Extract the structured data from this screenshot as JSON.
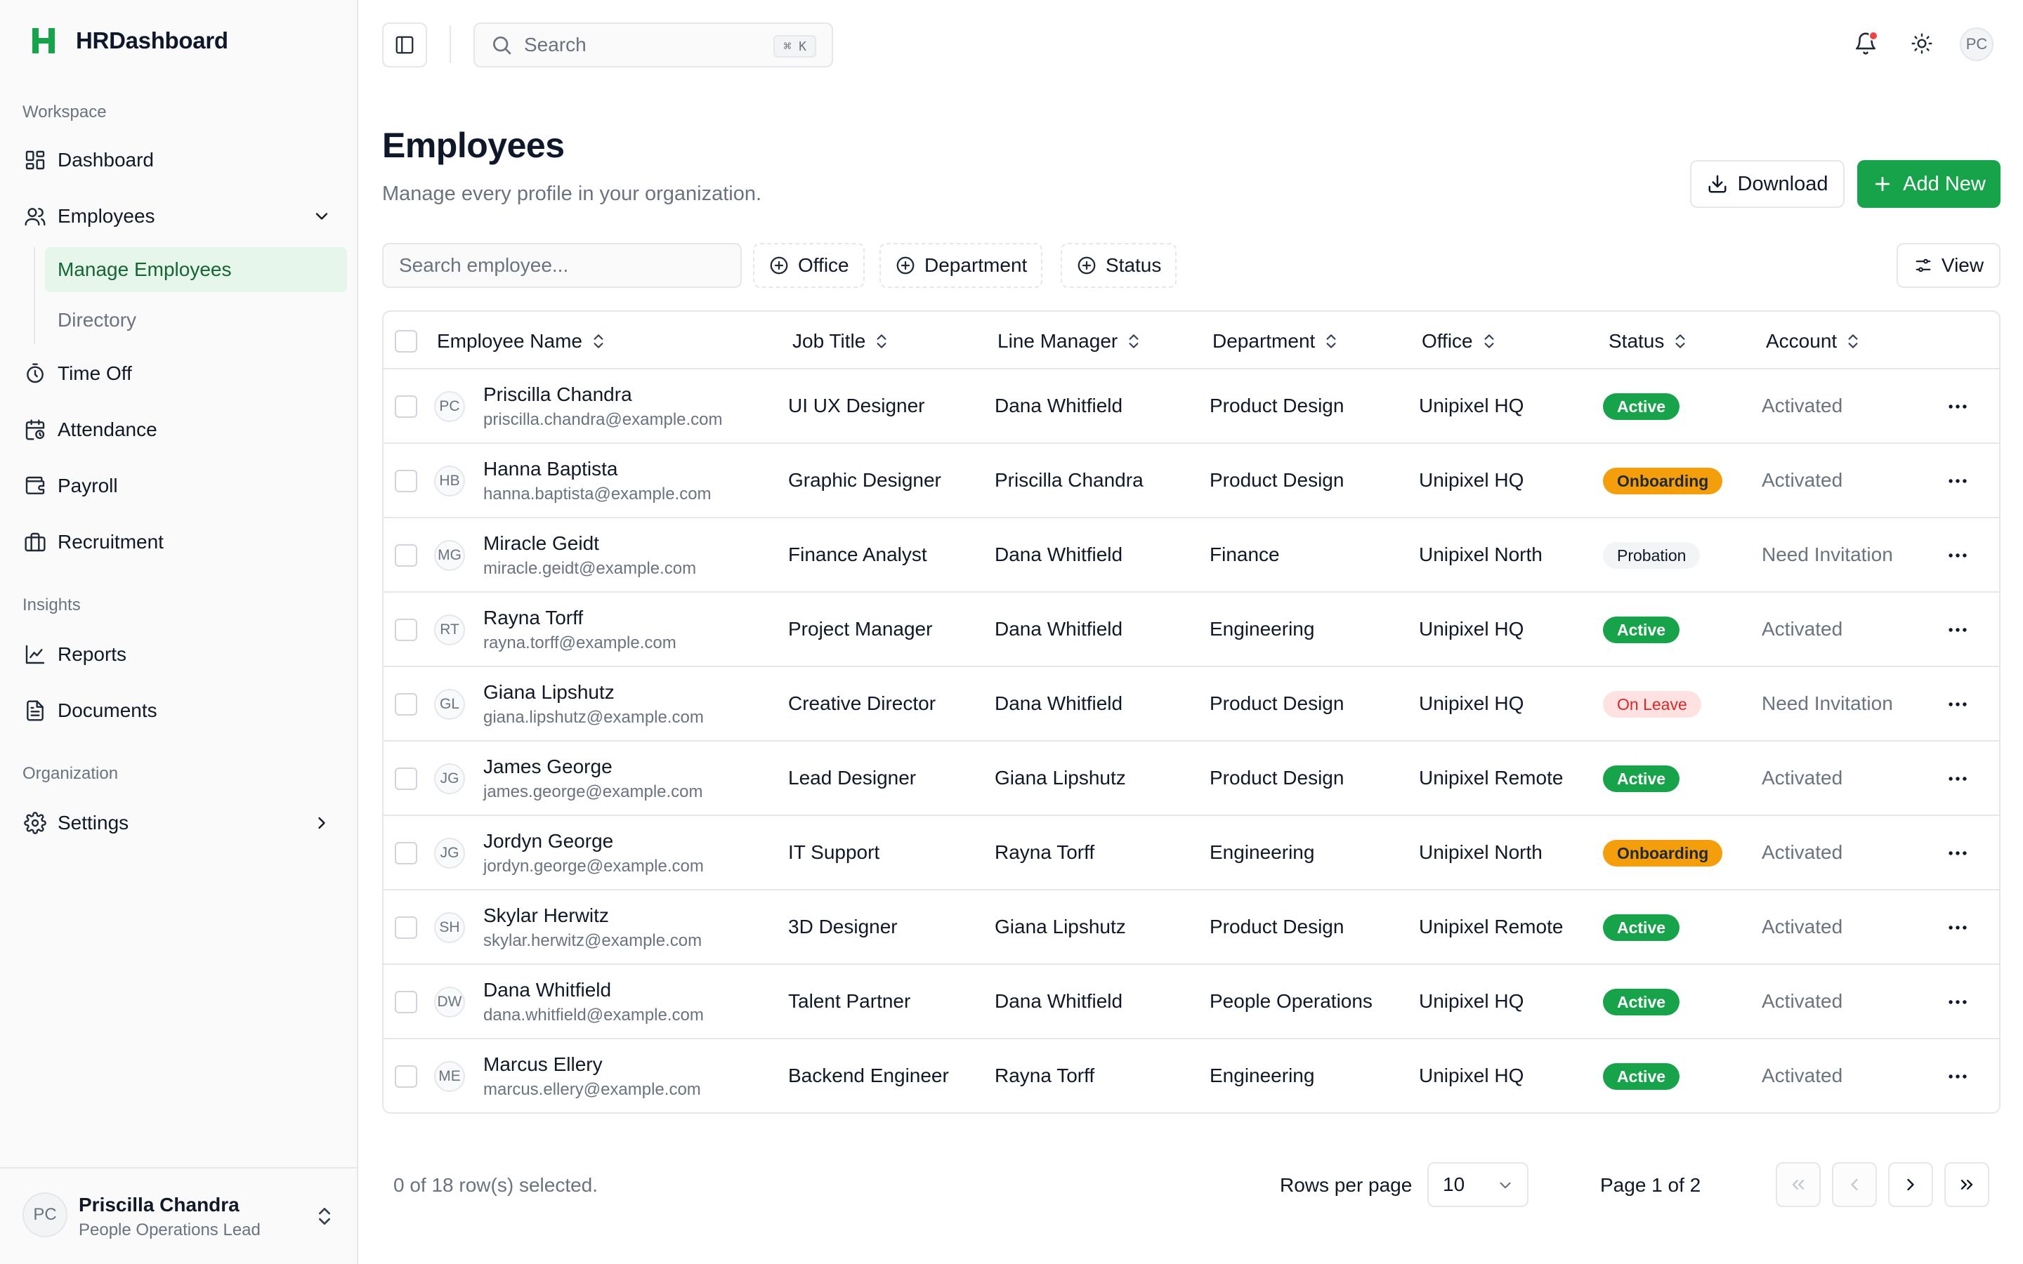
{
  "app": {
    "name": "HRDashboard",
    "brand_color": "#16a34a"
  },
  "sidebar": {
    "groups": [
      {
        "label": "Workspace"
      },
      {
        "label": "Insights"
      },
      {
        "label": "Organization"
      }
    ],
    "items": {
      "dashboard": "Dashboard",
      "employees": "Employees",
      "manage_employees": "Manage Employees",
      "directory": "Directory",
      "time_off": "Time Off",
      "attendance": "Attendance",
      "payroll": "Payroll",
      "recruitment": "Recruitment",
      "reports": "Reports",
      "documents": "Documents",
      "settings": "Settings"
    },
    "user": {
      "initials": "PC",
      "name": "Priscilla Chandra",
      "role": "People Operations Lead"
    }
  },
  "topbar": {
    "search_placeholder": "Search",
    "shortcut": "⌘ K",
    "avatar_initials": "PC",
    "icons": [
      "sidebar-toggle-icon",
      "search-icon",
      "bell-icon",
      "sun-icon"
    ]
  },
  "page": {
    "title": "Employees",
    "subtitle": "Manage every profile in your organization.",
    "download_label": "Download",
    "add_new_label": "Add New"
  },
  "toolbar": {
    "search_placeholder": "Search employee...",
    "filters": [
      "Office",
      "Department",
      "Status"
    ],
    "view_label": "View"
  },
  "table": {
    "columns": [
      "Employee Name",
      "Job Title",
      "Line Manager",
      "Department",
      "Office",
      "Status",
      "Account"
    ],
    "rows": [
      {
        "initials": "PC",
        "name": "Priscilla Chandra",
        "email": "priscilla.chandra@example.com",
        "job_title": "UI UX Designer",
        "line_manager": "Dana Whitfield",
        "department": "Product Design",
        "office": "Unipixel HQ",
        "status": "Active",
        "status_kind": "active",
        "account": "Activated"
      },
      {
        "initials": "HB",
        "name": "Hanna Baptista",
        "email": "hanna.baptista@example.com",
        "job_title": "Graphic Designer",
        "line_manager": "Priscilla Chandra",
        "department": "Product Design",
        "office": "Unipixel HQ",
        "status": "Onboarding",
        "status_kind": "onboarding",
        "account": "Activated"
      },
      {
        "initials": "MG",
        "name": "Miracle Geidt",
        "email": "miracle.geidt@example.com",
        "job_title": "Finance Analyst",
        "line_manager": "Dana Whitfield",
        "department": "Finance",
        "office": "Unipixel North",
        "status": "Probation",
        "status_kind": "probation",
        "account": "Need Invitation"
      },
      {
        "initials": "RT",
        "name": "Rayna Torff",
        "email": "rayna.torff@example.com",
        "job_title": "Project Manager",
        "line_manager": "Dana Whitfield",
        "department": "Engineering",
        "office": "Unipixel HQ",
        "status": "Active",
        "status_kind": "active",
        "account": "Activated"
      },
      {
        "initials": "GL",
        "name": "Giana Lipshutz",
        "email": "giana.lipshutz@example.com",
        "job_title": "Creative Director",
        "line_manager": "Dana Whitfield",
        "department": "Product Design",
        "office": "Unipixel HQ",
        "status": "On Leave",
        "status_kind": "leave",
        "account": "Need Invitation"
      },
      {
        "initials": "JG",
        "name": "James George",
        "email": "james.george@example.com",
        "job_title": "Lead Designer",
        "line_manager": "Giana Lipshutz",
        "department": "Product Design",
        "office": "Unipixel Remote",
        "status": "Active",
        "status_kind": "active",
        "account": "Activated"
      },
      {
        "initials": "JG",
        "name": "Jordyn George",
        "email": "jordyn.george@example.com",
        "job_title": "IT Support",
        "line_manager": "Rayna Torff",
        "department": "Engineering",
        "office": "Unipixel North",
        "status": "Onboarding",
        "status_kind": "onboarding",
        "account": "Activated"
      },
      {
        "initials": "SH",
        "name": "Skylar Herwitz",
        "email": "skylar.herwitz@example.com",
        "job_title": "3D Designer",
        "line_manager": "Giana Lipshutz",
        "department": "Product Design",
        "office": "Unipixel Remote",
        "status": "Active",
        "status_kind": "active",
        "account": "Activated"
      },
      {
        "initials": "DW",
        "name": "Dana Whitfield",
        "email": "dana.whitfield@example.com",
        "job_title": "Talent Partner",
        "line_manager": "Dana Whitfield",
        "department": "People Operations",
        "office": "Unipixel HQ",
        "status": "Active",
        "status_kind": "active",
        "account": "Activated"
      },
      {
        "initials": "ME",
        "name": "Marcus Ellery",
        "email": "marcus.ellery@example.com",
        "job_title": "Backend Engineer",
        "line_manager": "Rayna Torff",
        "department": "Engineering",
        "office": "Unipixel HQ",
        "status": "Active",
        "status_kind": "active",
        "account": "Activated"
      }
    ]
  },
  "footer": {
    "selected_text": "0 of 18 row(s) selected.",
    "rows_per_page_label": "Rows per page",
    "rows_per_page_value": "10",
    "page_text": "Page 1 of 2"
  }
}
